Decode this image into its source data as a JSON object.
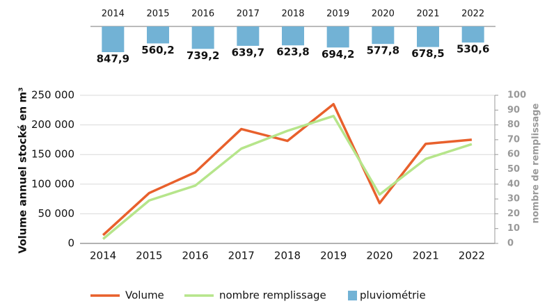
{
  "chart_data": [
    {
      "type": "bar",
      "categories": [
        "2014",
        "2015",
        "2016",
        "2017",
        "2018",
        "2019",
        "2020",
        "2021",
        "2022"
      ],
      "series": [
        {
          "name": "pluviométrie",
          "color": "#72b2d5",
          "values": [
            847.9,
            560.2,
            739.2,
            639.7,
            623.8,
            694.2,
            577.8,
            678.5,
            530.6
          ],
          "value_labels": [
            "847,9",
            "560,2",
            "739,2",
            "639,7",
            "623,8",
            "694,2",
            "577,8",
            "678,5",
            "530,6"
          ]
        }
      ]
    },
    {
      "type": "line",
      "y_label": "Volume annuel stocké en m³",
      "y2_label": "nombre de remplissage",
      "categories": [
        "2014",
        "2015",
        "2016",
        "2017",
        "2018",
        "2019",
        "2020",
        "2021",
        "2022"
      ],
      "series": [
        {
          "name": "Volume",
          "color": "#e8602c",
          "values": [
            14000,
            85000,
            120000,
            193000,
            173000,
            235000,
            68000,
            168000,
            175000
          ]
        },
        {
          "name": "nombre remplissage",
          "color": "#b6e58b",
          "axis": "y2",
          "values": [
            3,
            29,
            39,
            64,
            76,
            86,
            33,
            57,
            67
          ]
        }
      ],
      "ylim": [
        0,
        250000
      ],
      "yticks": [
        0,
        {
          "value": 50000,
          "label": "50 000"
        },
        {
          "value": 100000,
          "label": "100 000"
        },
        {
          "value": 150000,
          "label": "150 000"
        },
        {
          "value": 200000,
          "label": "200 000"
        },
        {
          "value": 250000,
          "label": "250 000"
        }
      ],
      "y2lim": [
        0,
        100
      ],
      "y2ticks": [
        0,
        10,
        20,
        30,
        40,
        50,
        60,
        70,
        80,
        90,
        100
      ],
      "grid": true
    }
  ]
}
